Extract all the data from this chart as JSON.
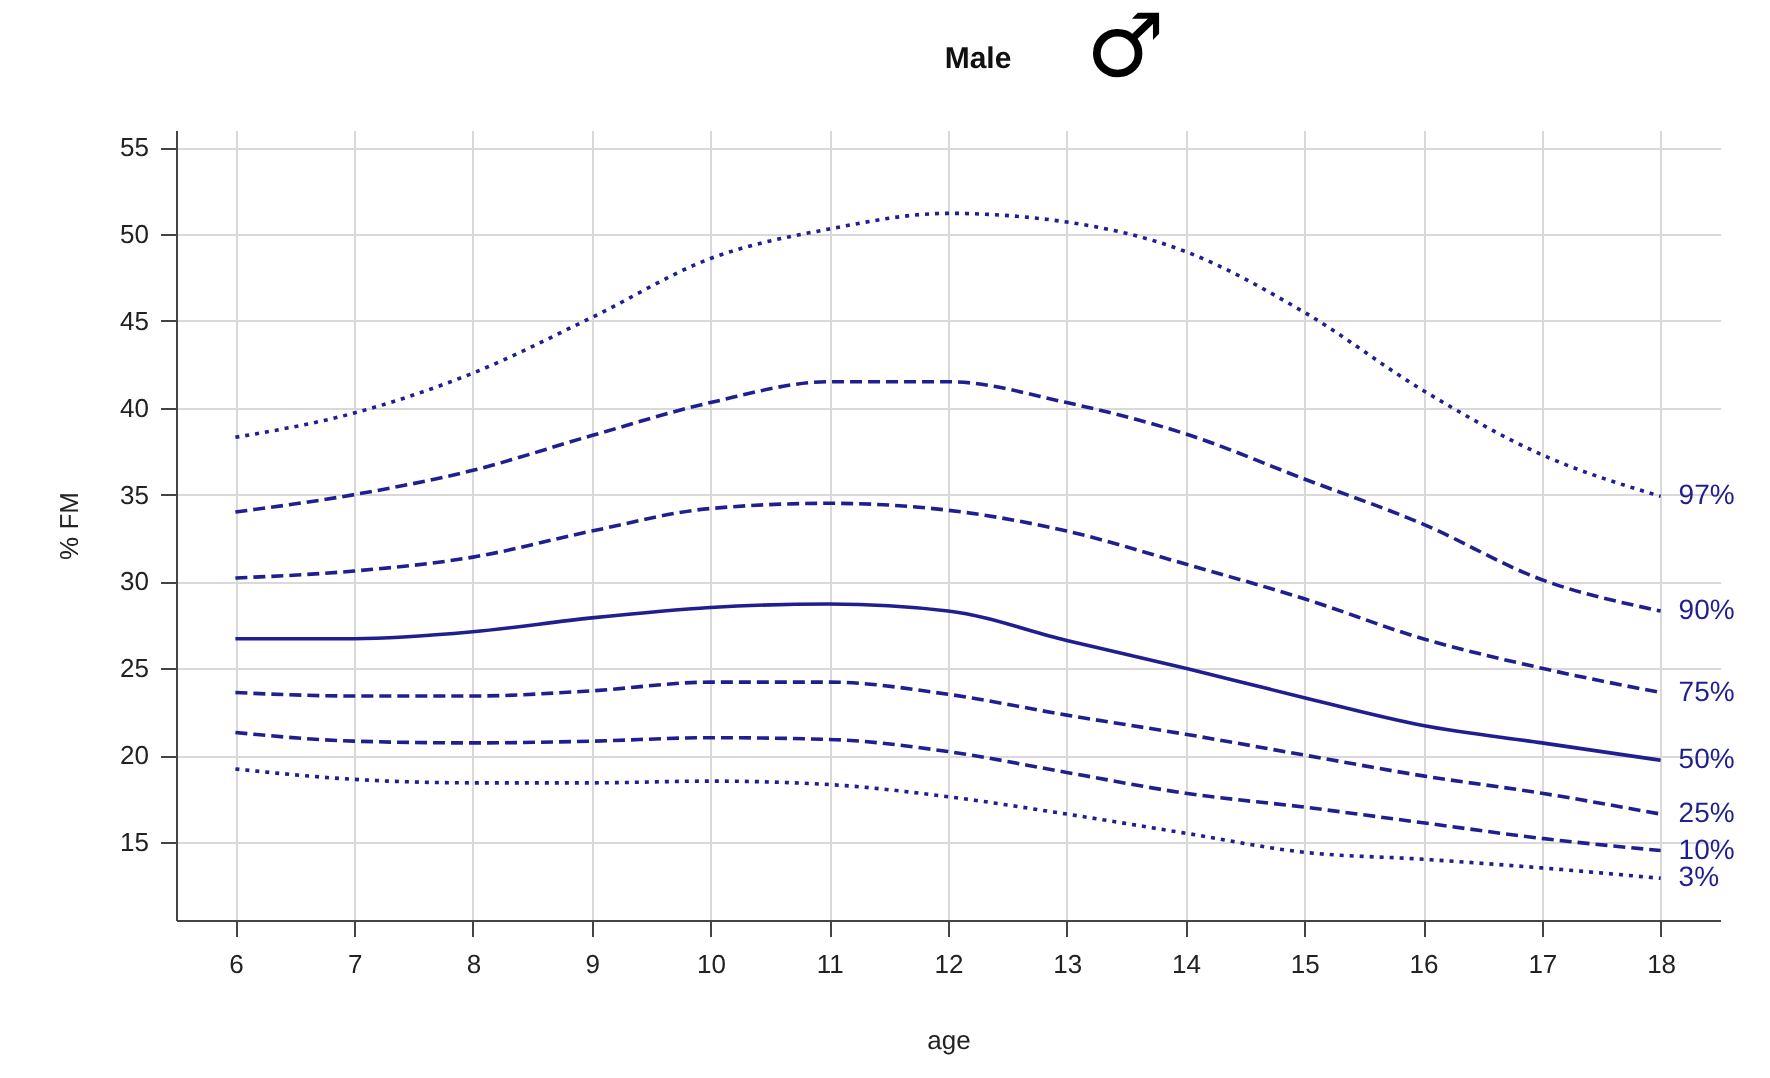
{
  "chart_data": {
    "type": "line",
    "title": "Male",
    "annotations": [
      "♂"
    ],
    "xlabel": "age",
    "ylabel": "% FM",
    "x": [
      6,
      7,
      8,
      9,
      10,
      11,
      12,
      13,
      14,
      15,
      16,
      17,
      18
    ],
    "xlim": [
      5.5,
      18.5
    ],
    "xticks": [
      6,
      7,
      8,
      9,
      10,
      11,
      12,
      13,
      14,
      15,
      16,
      17,
      18
    ],
    "ylim": [
      10.5,
      56
    ],
    "yticks": [
      15,
      20,
      25,
      30,
      35,
      40,
      45,
      50,
      55
    ],
    "grid": true,
    "series": [
      {
        "name": "97%",
        "color": "#1f1f8f",
        "line_style": "dotted",
        "values": [
          38.3,
          39.7,
          42,
          45.2,
          48.6,
          50.3,
          51.2,
          50.7,
          49,
          45.5,
          41,
          37.3,
          34.9
        ]
      },
      {
        "name": "90%",
        "color": "#1f1f8f",
        "line_style": "dashed",
        "values": [
          34,
          35,
          36.4,
          38.4,
          40.3,
          41.5,
          41.5,
          40.3,
          38.5,
          35.9,
          33.3,
          30.1,
          28.3
        ]
      },
      {
        "name": "75%",
        "color": "#1f1f8f",
        "line_style": "dashed",
        "values": [
          30.2,
          30.6,
          31.4,
          32.9,
          34.2,
          34.5,
          34.1,
          32.9,
          31,
          29,
          26.7,
          25,
          23.6
        ]
      },
      {
        "name": "50%",
        "color": "#1f1f8f",
        "line_style": "solid",
        "values": [
          26.7,
          26.7,
          27.1,
          27.9,
          28.5,
          28.7,
          28.3,
          26.6,
          25,
          23.3,
          21.7,
          20.7,
          19.7
        ]
      },
      {
        "name": "25%",
        "color": "#1f1f8f",
        "line_style": "dashed",
        "values": [
          23.6,
          23.4,
          23.4,
          23.7,
          24.2,
          24.2,
          23.5,
          22.3,
          21.2,
          20,
          18.8,
          17.8,
          16.6
        ]
      },
      {
        "name": "10%",
        "color": "#1f1f8f",
        "line_style": "dashed",
        "values": [
          21.3,
          20.8,
          20.7,
          20.8,
          21,
          20.9,
          20.2,
          19,
          17.8,
          17,
          16.1,
          15.2,
          14.5
        ]
      },
      {
        "name": "3%",
        "color": "#1f1f8f",
        "line_style": "dotted",
        "values": [
          19.2,
          18.6,
          18.4,
          18.4,
          18.5,
          18.3,
          17.6,
          16.6,
          15.5,
          14.4,
          14,
          13.5,
          12.9
        ]
      }
    ]
  }
}
